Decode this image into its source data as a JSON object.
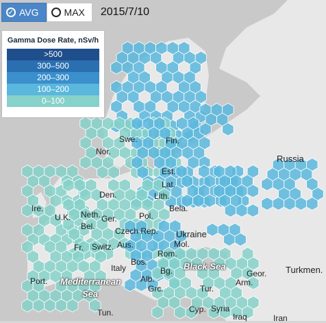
{
  "controls": {
    "avg_label": "AVG",
    "max_label": "MAX",
    "selected": "AVG",
    "date": "2015/7/10"
  },
  "legend": {
    "title": "Gamma Dose Rate, nSv/h",
    "items": [
      {
        "label": ">500",
        "color": "#1f4e8c"
      },
      {
        "label": "300–500",
        "color": "#2a6fb0"
      },
      {
        "label": "200–300",
        "color": "#3a8fcc"
      },
      {
        "label": "100–200",
        "color": "#5ab7dd"
      },
      {
        "label": "0–100",
        "color": "#86d1c9"
      }
    ]
  },
  "colors": {
    "land": "#e8e8e8",
    "sea": "#c9c9c9",
    "hex_low": "#86d1c9",
    "hex_mid": "#5ab7dd",
    "hex_high": "#3a8fcc"
  },
  "map_labels": [
    {
      "id": "swe",
      "text": "Swe."
    },
    {
      "id": "fin",
      "text": "Fin."
    },
    {
      "id": "nor",
      "text": "Nor."
    },
    {
      "id": "est",
      "text": "Est."
    },
    {
      "id": "lat",
      "text": "Lat."
    },
    {
      "id": "lith",
      "text": "Lith."
    },
    {
      "id": "den",
      "text": "Den."
    },
    {
      "id": "russia",
      "text": "Russia"
    },
    {
      "id": "bela",
      "text": "Bela."
    },
    {
      "id": "ireland",
      "text": "Ire."
    },
    {
      "id": "uk",
      "text": "U.K."
    },
    {
      "id": "neth",
      "text": "Neth."
    },
    {
      "id": "bel",
      "text": "Bel."
    },
    {
      "id": "ger",
      "text": "Ger."
    },
    {
      "id": "pol",
      "text": "Pol."
    },
    {
      "id": "czech",
      "text": "Czech Rep."
    },
    {
      "id": "ukraine",
      "text": "Ukraine"
    },
    {
      "id": "mol",
      "text": "Mol."
    },
    {
      "id": "fr",
      "text": "Fr."
    },
    {
      "id": "switz",
      "text": "Switz."
    },
    {
      "id": "aus",
      "text": "Aus."
    },
    {
      "id": "rom",
      "text": "Rom."
    },
    {
      "id": "italy",
      "text": "Italy"
    },
    {
      "id": "bos",
      "text": "Bos."
    },
    {
      "id": "blacksea",
      "text": "Black Sea"
    },
    {
      "id": "bg",
      "text": "Bg."
    },
    {
      "id": "alb",
      "text": "Alb."
    },
    {
      "id": "geor",
      "text": "Geor."
    },
    {
      "id": "arm",
      "text": "Arm."
    },
    {
      "id": "turkmen",
      "text": "Turkmen."
    },
    {
      "id": "port",
      "text": "Port."
    },
    {
      "id": "medsea",
      "text": "Mediterranean"
    },
    {
      "id": "sea",
      "text": "Sea"
    },
    {
      "id": "grc",
      "text": "Grc."
    },
    {
      "id": "tur",
      "text": "Tur."
    },
    {
      "id": "cyp",
      "text": "Cyp."
    },
    {
      "id": "syria",
      "text": "Syria"
    },
    {
      "id": "tun",
      "text": "Tun."
    },
    {
      "id": "iraq",
      "text": "Iraq"
    },
    {
      "id": "iran",
      "text": "Iran"
    }
  ]
}
